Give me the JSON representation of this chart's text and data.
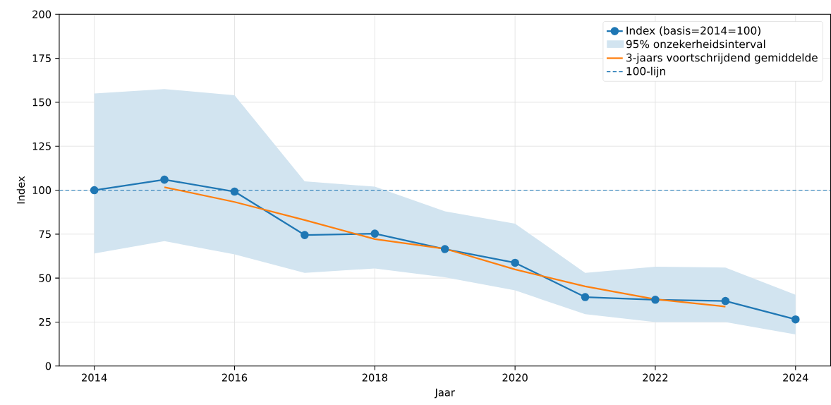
{
  "chart_data": {
    "type": "line",
    "xlabel": "Jaar",
    "ylabel": "Index",
    "x": [
      2014,
      2015,
      2016,
      2017,
      2018,
      2019,
      2020,
      2021,
      2022,
      2023,
      2024
    ],
    "series": [
      {
        "name": "Index (basis=2014=100)",
        "color": "#1f77b4",
        "marker": "circle",
        "values": [
          100,
          106,
          99.2,
          74.5,
          75.3,
          66.5,
          58.7,
          39.2,
          37.7,
          37,
          26.5
        ],
        "lower": [
          64,
          71,
          63.5,
          53,
          55.5,
          50.5,
          43,
          29.5,
          25,
          25,
          18
        ],
        "upper": [
          155,
          157.5,
          154,
          105,
          102,
          88,
          81,
          53,
          56.5,
          56,
          40.5
        ]
      },
      {
        "name": "3-jaars voortschrijdend gemiddelde",
        "color": "#ff7f0e",
        "x": [
          2015,
          2016,
          2017,
          2018,
          2019,
          2020,
          2021,
          2022,
          2023
        ],
        "values": [
          101.7,
          93.3,
          83,
          72.2,
          66.7,
          54.9,
          45.3,
          38,
          33.8
        ]
      }
    ],
    "annotations": [
      "95% onzekerheidsinterval"
    ],
    "ref_lines": [
      {
        "axis": "y",
        "value": 100,
        "label": "100-lijn",
        "color": "#1f77b4",
        "line_style": "dashed"
      }
    ],
    "xlim": [
      2013.5,
      2024.5
    ],
    "ylim": [
      0,
      200
    ],
    "xticks": [
      2014,
      2016,
      2018,
      2020,
      2022,
      2024
    ],
    "yticks": [
      0,
      25,
      50,
      75,
      100,
      125,
      150,
      175,
      200
    ],
    "grid": true,
    "legend": "top right"
  }
}
